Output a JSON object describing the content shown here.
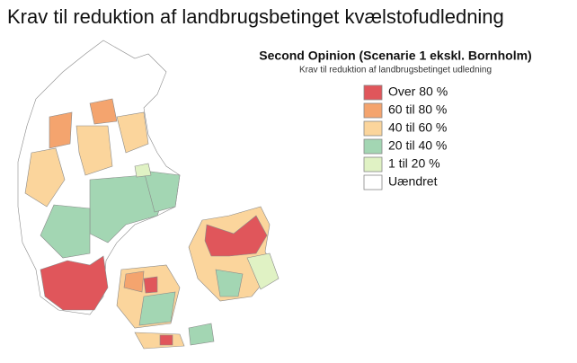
{
  "title": "Krav til reduktion af landbrugsbetinget kvælstofudledning",
  "legend": {
    "title": "Second Opinion (Scenarie 1 ekskl. Bornholm)",
    "subtitle": "Krav til reduktion af landbrugsbetinget udledning",
    "items": [
      {
        "label": "Over 80 %",
        "color": "#e0565b"
      },
      {
        "label": "60 til 80 %",
        "color": "#f4a46e"
      },
      {
        "label": "40 til 60 %",
        "color": "#fbd59c"
      },
      {
        "label": "20 til 40 %",
        "color": "#a3d6b3"
      },
      {
        "label": "1 til 20 %",
        "color": "#e0f2c4"
      },
      {
        "label": "Uændret",
        "color": "#ffffff"
      }
    ]
  }
}
